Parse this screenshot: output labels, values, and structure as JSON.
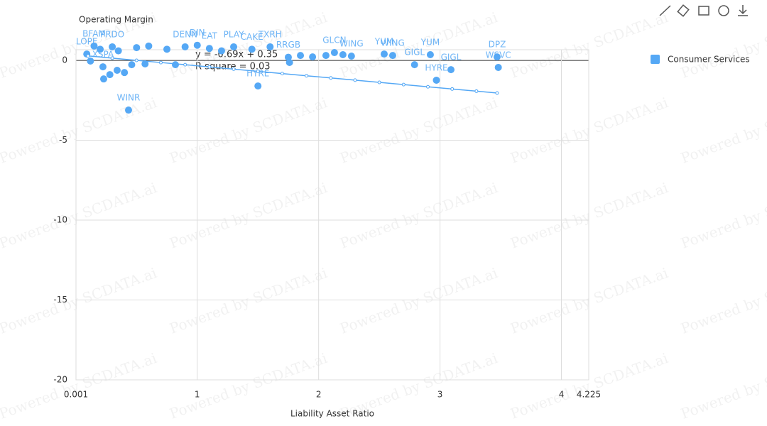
{
  "chart_data": {
    "type": "scatter",
    "y_label": "Operating Margin",
    "x_label": "Liability Asset Ratio",
    "xlim": [
      0.001,
      4.225
    ],
    "xticks": [
      0.001,
      1,
      2,
      3,
      4,
      4.225
    ],
    "ylim": [
      -20,
      0.67
    ],
    "yticks": [
      0,
      -5,
      -10,
      -15,
      -20
    ],
    "grid": true,
    "legend_position": "right",
    "series": [
      {
        "name": "Consumer Services",
        "color": "#55a8f5",
        "x": [
          0.434,
          1.5,
          2.97,
          2.79,
          3.09,
          3.47,
          3.48,
          2.92,
          2.54,
          2.61,
          2.27,
          2.13,
          2.2,
          2.06,
          1.95,
          1.85,
          1.76,
          0.223,
          0.28,
          0.229,
          0.34,
          0.4,
          0.12,
          0.09,
          0.57,
          0.82,
          0.46,
          0.15,
          0.2,
          0.3,
          0.35,
          0.5,
          0.6,
          0.75,
          0.9,
          1.0,
          1.1,
          1.2,
          1.3,
          1.45,
          1.6,
          1.75
        ],
        "values": [
          -3.11,
          -1.6,
          -1.24,
          -0.27,
          -0.58,
          0.22,
          -0.44,
          0.36,
          0.4,
          0.31,
          0.27,
          0.49,
          0.36,
          0.31,
          0.22,
          0.31,
          -0.13,
          -0.4,
          -0.89,
          -1.16,
          -0.62,
          -0.76,
          -0.04,
          0.4,
          -0.22,
          -0.27,
          -0.27,
          0.9,
          0.7,
          0.85,
          0.6,
          0.8,
          0.9,
          0.7,
          0.85,
          0.95,
          0.75,
          0.6,
          0.85,
          0.7,
          0.85,
          0.2
        ],
        "labels": [
          "WINR",
          "HYRE",
          "HYRE",
          "GIGL",
          "GIGL",
          "DPZ",
          "WSVC",
          "YUM",
          "YUM",
          "WING",
          "WING",
          "GLCN",
          null,
          null,
          null,
          null,
          null,
          "XSPA",
          null,
          null,
          null,
          null,
          null,
          "LOPE",
          null,
          null,
          null,
          "BFAM",
          null,
          "PRDO",
          null,
          null,
          null,
          null,
          "DENN",
          "DIN",
          "EAT",
          null,
          "PLAY",
          "CAKE",
          "TXRH",
          "RRGB"
        ]
      }
    ],
    "trendline": {
      "equation": "y = -0.69x + 0.35",
      "r_square": "R square = 0.03",
      "x": [
        0.1,
        0.3,
        0.5,
        0.7,
        0.9,
        1.1,
        1.3,
        1.5,
        1.7,
        1.9,
        2.1,
        2.3,
        2.5,
        2.7,
        2.9,
        3.1,
        3.3,
        3.47
      ],
      "values": [
        0.281,
        0.143,
        0.005,
        -0.133,
        -0.271,
        -0.409,
        -0.547,
        -0.685,
        -0.823,
        -0.961,
        -1.099,
        -1.237,
        -1.375,
        -1.513,
        -1.651,
        -1.789,
        -1.927,
        -2.044
      ]
    },
    "watermark": "Powered by SCDATA.ai"
  }
}
